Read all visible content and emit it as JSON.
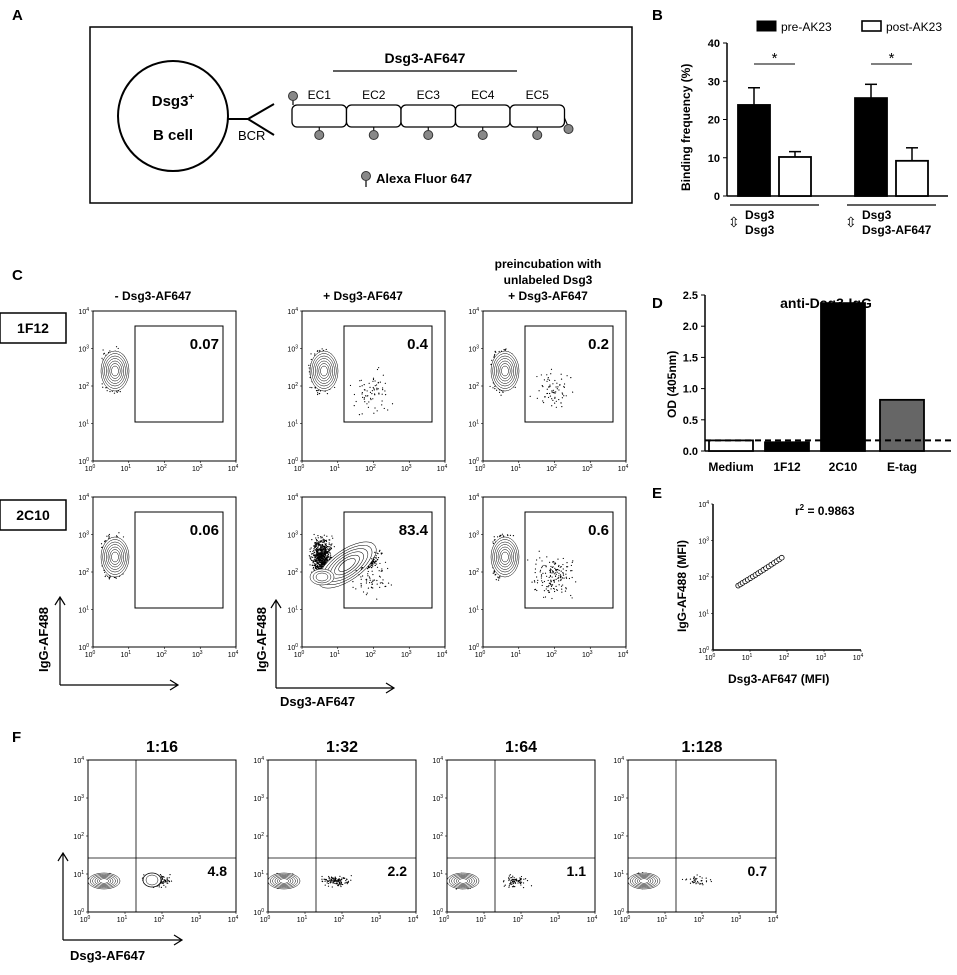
{
  "panels": {
    "A": "A",
    "B": "B",
    "C": "C",
    "D": "D",
    "E": "E",
    "F": "F"
  },
  "panelA": {
    "cell_label_1": "Dsg3",
    "cell_label_sup": "+",
    "cell_label_2": "B cell",
    "bcr": "BCR",
    "construct": "Dsg3-AF647",
    "domains": [
      "EC1",
      "EC2",
      "EC3",
      "EC4",
      "EC5"
    ],
    "legend": "Alexa Fluor 647"
  },
  "chart_data": [
    {
      "type": "bar",
      "panel": "B",
      "title": "",
      "ylabel": "Binding frequency (%)",
      "ylim": [
        0,
        40
      ],
      "yticks": [
        0,
        10,
        20,
        30,
        40
      ],
      "legend": [
        "pre-AK23",
        "post-AK23"
      ],
      "legend_placement": "top",
      "groups": [
        {
          "label_1": "Dsg3",
          "label_2": "Dsg3",
          "symbol": "⇳",
          "significance": "*"
        },
        {
          "label_1": "Dsg3",
          "label_2": "Dsg3-AF647",
          "symbol": "⇳",
          "significance": "*"
        }
      ],
      "series": [
        {
          "name": "pre-AK23",
          "color": "#000000",
          "values": [
            23.8,
            25.6
          ],
          "errors": [
            4.5,
            3.6
          ]
        },
        {
          "name": "post-AK23",
          "color": "#ffffff",
          "values": [
            10.2,
            9.2
          ],
          "errors": [
            1.4,
            3.4
          ]
        }
      ]
    },
    {
      "type": "bar",
      "panel": "D",
      "title": "anti-Dsg3-IgG",
      "ylabel": "OD (405nm)",
      "ylim": [
        0,
        2.5
      ],
      "yticks": [
        "0.0",
        "0.5",
        "1.0",
        "1.5",
        "2.0",
        "2.5"
      ],
      "categories": [
        "Medium",
        "1F12",
        "2C10",
        "E-tag"
      ],
      "values": [
        0.17,
        0.14,
        2.37,
        0.82
      ],
      "colors": [
        "#ffffff",
        "#000000",
        "#000000",
        "#666666"
      ],
      "cutoff": 0.17
    },
    {
      "type": "scatter",
      "panel": "E",
      "xlabel": "Dsg3-AF647 (MFI)",
      "ylabel": "IgG-AF488 (MFI)",
      "r2_label": "r",
      "r2_sup": "2",
      "r2_value": " = 0.9863",
      "log_scale": true,
      "xlim": [
        1,
        10000
      ],
      "ylim": [
        1,
        10000
      ],
      "x": [
        4.8,
        5.5,
        6.3,
        7.4,
        8.7,
        10.2,
        12.0,
        14.1,
        16.6,
        19.5,
        23.0,
        27.1,
        32.0,
        37.7,
        44.4,
        52.3,
        61.6,
        72.0
      ],
      "y": [
        58,
        63,
        69,
        76,
        84,
        93,
        103,
        114,
        127,
        141,
        157,
        175,
        195,
        218,
        243,
        271,
        302,
        338
      ]
    }
  ],
  "panelC": {
    "clone_labels": [
      "1F12",
      "2C10"
    ],
    "column_titles": [
      "- Dsg3-AF647",
      "+ Dsg3-AF647",
      "preincubation with",
      "unlabeled Dsg3",
      "+ Dsg3-AF647"
    ],
    "gate_values": [
      [
        "0.07",
        "0.4",
        "0.2"
      ],
      [
        "0.06",
        "83.4",
        "0.6"
      ]
    ],
    "ylabel": "IgG-AF488",
    "xlabel": "Dsg3-AF647"
  },
  "panelF": {
    "titles": [
      "1:16",
      "1:32",
      "1:64",
      "1:128"
    ],
    "values": [
      "4.8",
      "2.2",
      "1.1",
      "0.7"
    ],
    "xlabel": "Dsg3-AF647"
  },
  "ticks": {
    "base": "10",
    "exps": [
      "0",
      "1",
      "2",
      "3",
      "4"
    ]
  }
}
